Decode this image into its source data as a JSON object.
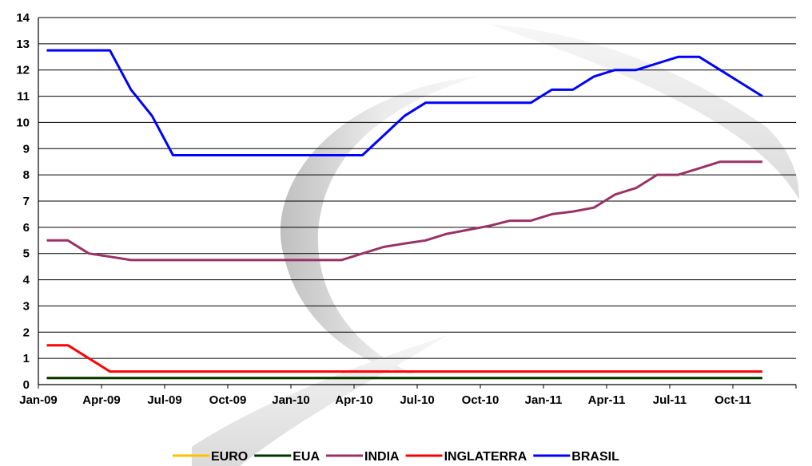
{
  "chart_data": {
    "type": "line",
    "title": "",
    "xlabel": "",
    "ylabel": "",
    "ylim": [
      0,
      14
    ],
    "grid": "horizontal",
    "legend_position": "bottom",
    "x_tick_labels": [
      "Jan-09",
      "Apr-09",
      "Jul-09",
      "Oct-09",
      "Jan-10",
      "Apr-10",
      "Jul-10",
      "Oct-10",
      "Jan-11",
      "Apr-11",
      "Jul-11",
      "Oct-11"
    ],
    "y_tick_labels": [
      "0",
      "1",
      "2",
      "3",
      "4",
      "5",
      "6",
      "7",
      "8",
      "9",
      "10",
      "11",
      "12",
      "13",
      "14"
    ],
    "x": [
      "2009-01",
      "2009-02",
      "2009-03",
      "2009-04",
      "2009-05",
      "2009-06",
      "2009-07",
      "2009-08",
      "2009-09",
      "2009-10",
      "2009-11",
      "2009-12",
      "2010-01",
      "2010-02",
      "2010-03",
      "2010-04",
      "2010-05",
      "2010-06",
      "2010-07",
      "2010-08",
      "2010-09",
      "2010-10",
      "2010-11",
      "2010-12",
      "2011-01",
      "2011-02",
      "2011-03",
      "2011-04",
      "2011-05",
      "2011-06",
      "2011-07",
      "2011-08",
      "2011-09",
      "2011-10",
      "2011-11"
    ],
    "series": [
      {
        "name": "EURO",
        "color": "#ffc000",
        "values": [
          0.25,
          0.25,
          0.25,
          0.25,
          0.25,
          0.25,
          0.25,
          0.25,
          0.25,
          0.25,
          0.25,
          0.25,
          0.25,
          0.25,
          0.25,
          0.25,
          0.25,
          0.25,
          0.25,
          0.25,
          0.25,
          0.25,
          0.25,
          0.25,
          0.25,
          0.25,
          0.25,
          0.25,
          0.25,
          0.25,
          0.25,
          0.25,
          0.25,
          0.25,
          0.25
        ]
      },
      {
        "name": "EUA",
        "color": "#003300",
        "values": [
          0.25,
          0.25,
          0.25,
          0.25,
          0.25,
          0.25,
          0.25,
          0.25,
          0.25,
          0.25,
          0.25,
          0.25,
          0.25,
          0.25,
          0.25,
          0.25,
          0.25,
          0.25,
          0.25,
          0.25,
          0.25,
          0.25,
          0.25,
          0.25,
          0.25,
          0.25,
          0.25,
          0.25,
          0.25,
          0.25,
          0.25,
          0.25,
          0.25,
          0.25,
          0.25
        ]
      },
      {
        "name": "INDIA",
        "color": "#993366",
        "values": [
          5.5,
          5.5,
          5.0,
          4.88,
          4.75,
          4.75,
          4.75,
          4.75,
          4.75,
          4.75,
          4.75,
          4.75,
          4.75,
          4.75,
          4.75,
          5.0,
          5.25,
          5.38,
          5.5,
          5.75,
          5.9,
          6.05,
          6.25,
          6.25,
          6.5,
          6.6,
          6.75,
          7.25,
          7.5,
          8.0,
          8.0,
          8.25,
          8.5,
          8.5,
          8.5
        ]
      },
      {
        "name": "INGLATERRA",
        "color": "#ff0000",
        "values": [
          1.5,
          1.5,
          1.0,
          0.5,
          0.5,
          0.5,
          0.5,
          0.5,
          0.5,
          0.5,
          0.5,
          0.5,
          0.5,
          0.5,
          0.5,
          0.5,
          0.5,
          0.5,
          0.5,
          0.5,
          0.5,
          0.5,
          0.5,
          0.5,
          0.5,
          0.5,
          0.5,
          0.5,
          0.5,
          0.5,
          0.5,
          0.5,
          0.5,
          0.5,
          0.5
        ]
      },
      {
        "name": "BRASIL",
        "color": "#0000ff",
        "values": [
          12.75,
          12.75,
          12.75,
          12.75,
          11.25,
          10.25,
          8.75,
          8.75,
          8.75,
          8.75,
          8.75,
          8.75,
          8.75,
          8.75,
          8.75,
          8.75,
          9.5,
          10.25,
          10.75,
          10.75,
          10.75,
          10.75,
          10.75,
          10.75,
          11.25,
          11.25,
          11.75,
          12.0,
          12.0,
          12.25,
          12.5,
          12.5,
          12.0,
          11.5,
          11.0
        ]
      }
    ]
  }
}
